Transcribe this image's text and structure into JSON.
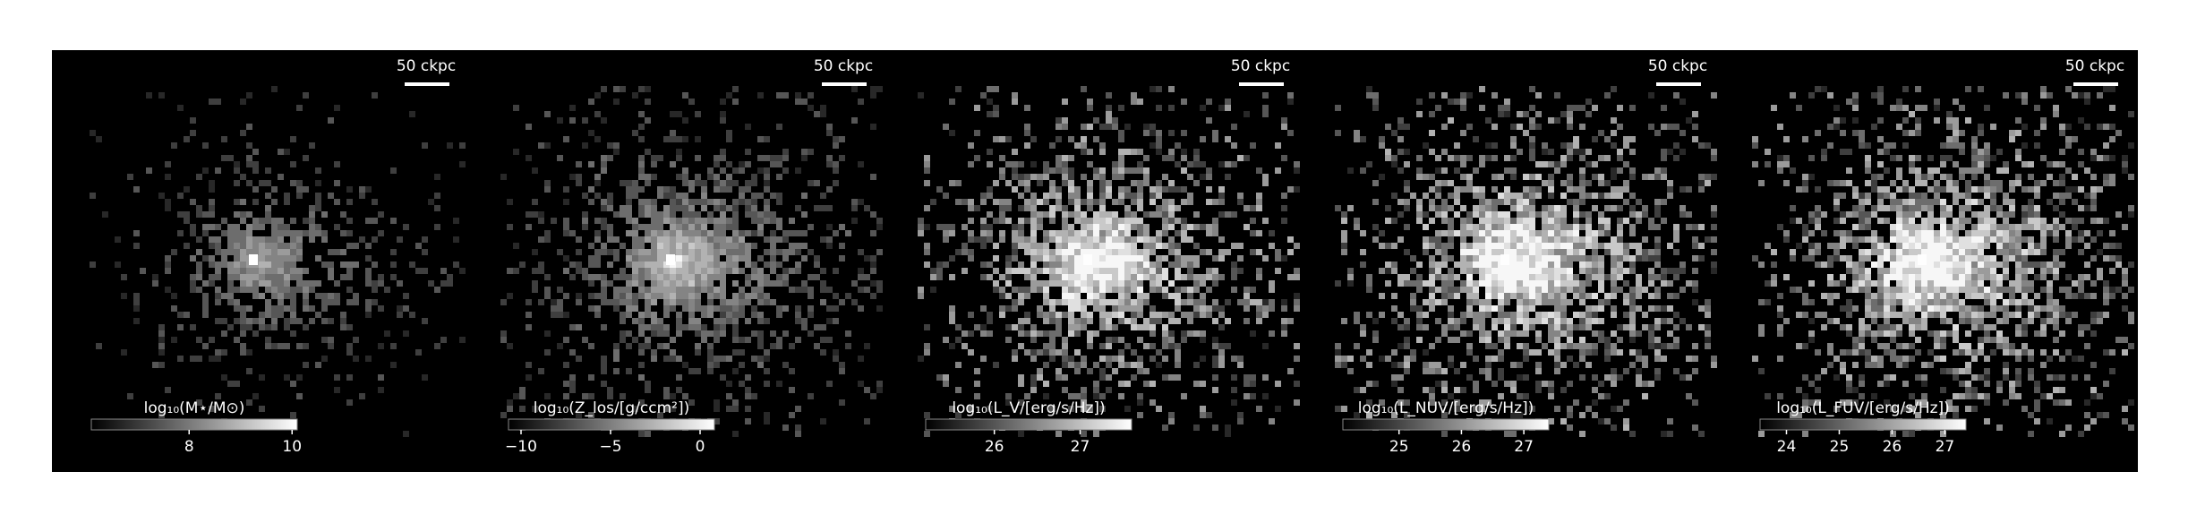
{
  "chart_data": [
    {
      "type": "image",
      "scale_bar": "50 ckpc",
      "colorbar": {
        "label": "log₁₀(M⋆/M⊙)",
        "lim": [
          6.1,
          10.1
        ],
        "ticks": [
          8,
          10
        ]
      }
    },
    {
      "type": "image",
      "scale_bar": "50 ckpc",
      "colorbar": {
        "label": "log₁₀(Z_los/[g/ccm²])",
        "lim": [
          -10.7,
          0.8
        ],
        "ticks": [
          {
            "value": -10,
            "label": "−10"
          },
          {
            "value": -5,
            "label": "−5"
          },
          0
        ]
      }
    },
    {
      "type": "image",
      "scale_bar": "50 ckpc",
      "colorbar": {
        "label": "log₁₀(L_V/[erg/s/Hz])",
        "lim": [
          25.2,
          27.6
        ],
        "ticks": [
          26,
          27
        ]
      }
    },
    {
      "type": "image",
      "scale_bar": "50 ckpc",
      "colorbar": {
        "label": "log₁₀(L_NUV/[erg/s/Hz])",
        "lim": [
          24.1,
          27.4
        ],
        "ticks": [
          25,
          26,
          27
        ]
      }
    },
    {
      "type": "image",
      "scale_bar": "50 ckpc",
      "colorbar": {
        "label": "log₁₀(L_FUV/[erg/s/Hz])",
        "lim": [
          23.5,
          27.4
        ],
        "ticks": [
          24,
          25,
          26,
          27
        ]
      }
    }
  ]
}
